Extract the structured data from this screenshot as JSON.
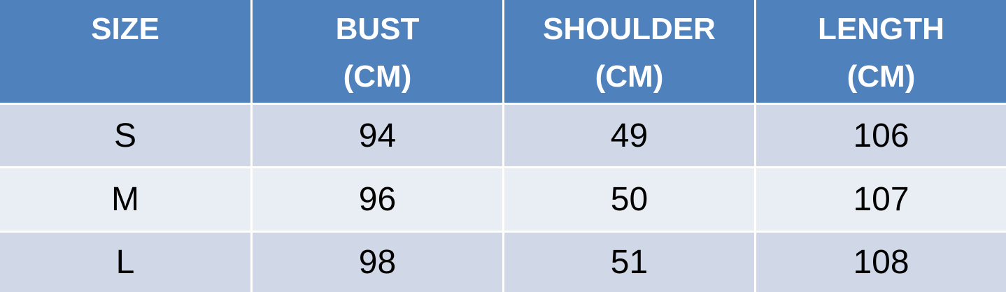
{
  "table": {
    "header": [
      "SIZE",
      "BUST\n(CM)",
      "SHOULDER\n(CM)",
      "LENGTH\n(CM)"
    ],
    "rows": [
      [
        "S",
        94,
        49,
        106
      ],
      [
        "M",
        96,
        50,
        107
      ],
      [
        "L",
        98,
        51,
        108
      ]
    ]
  }
}
